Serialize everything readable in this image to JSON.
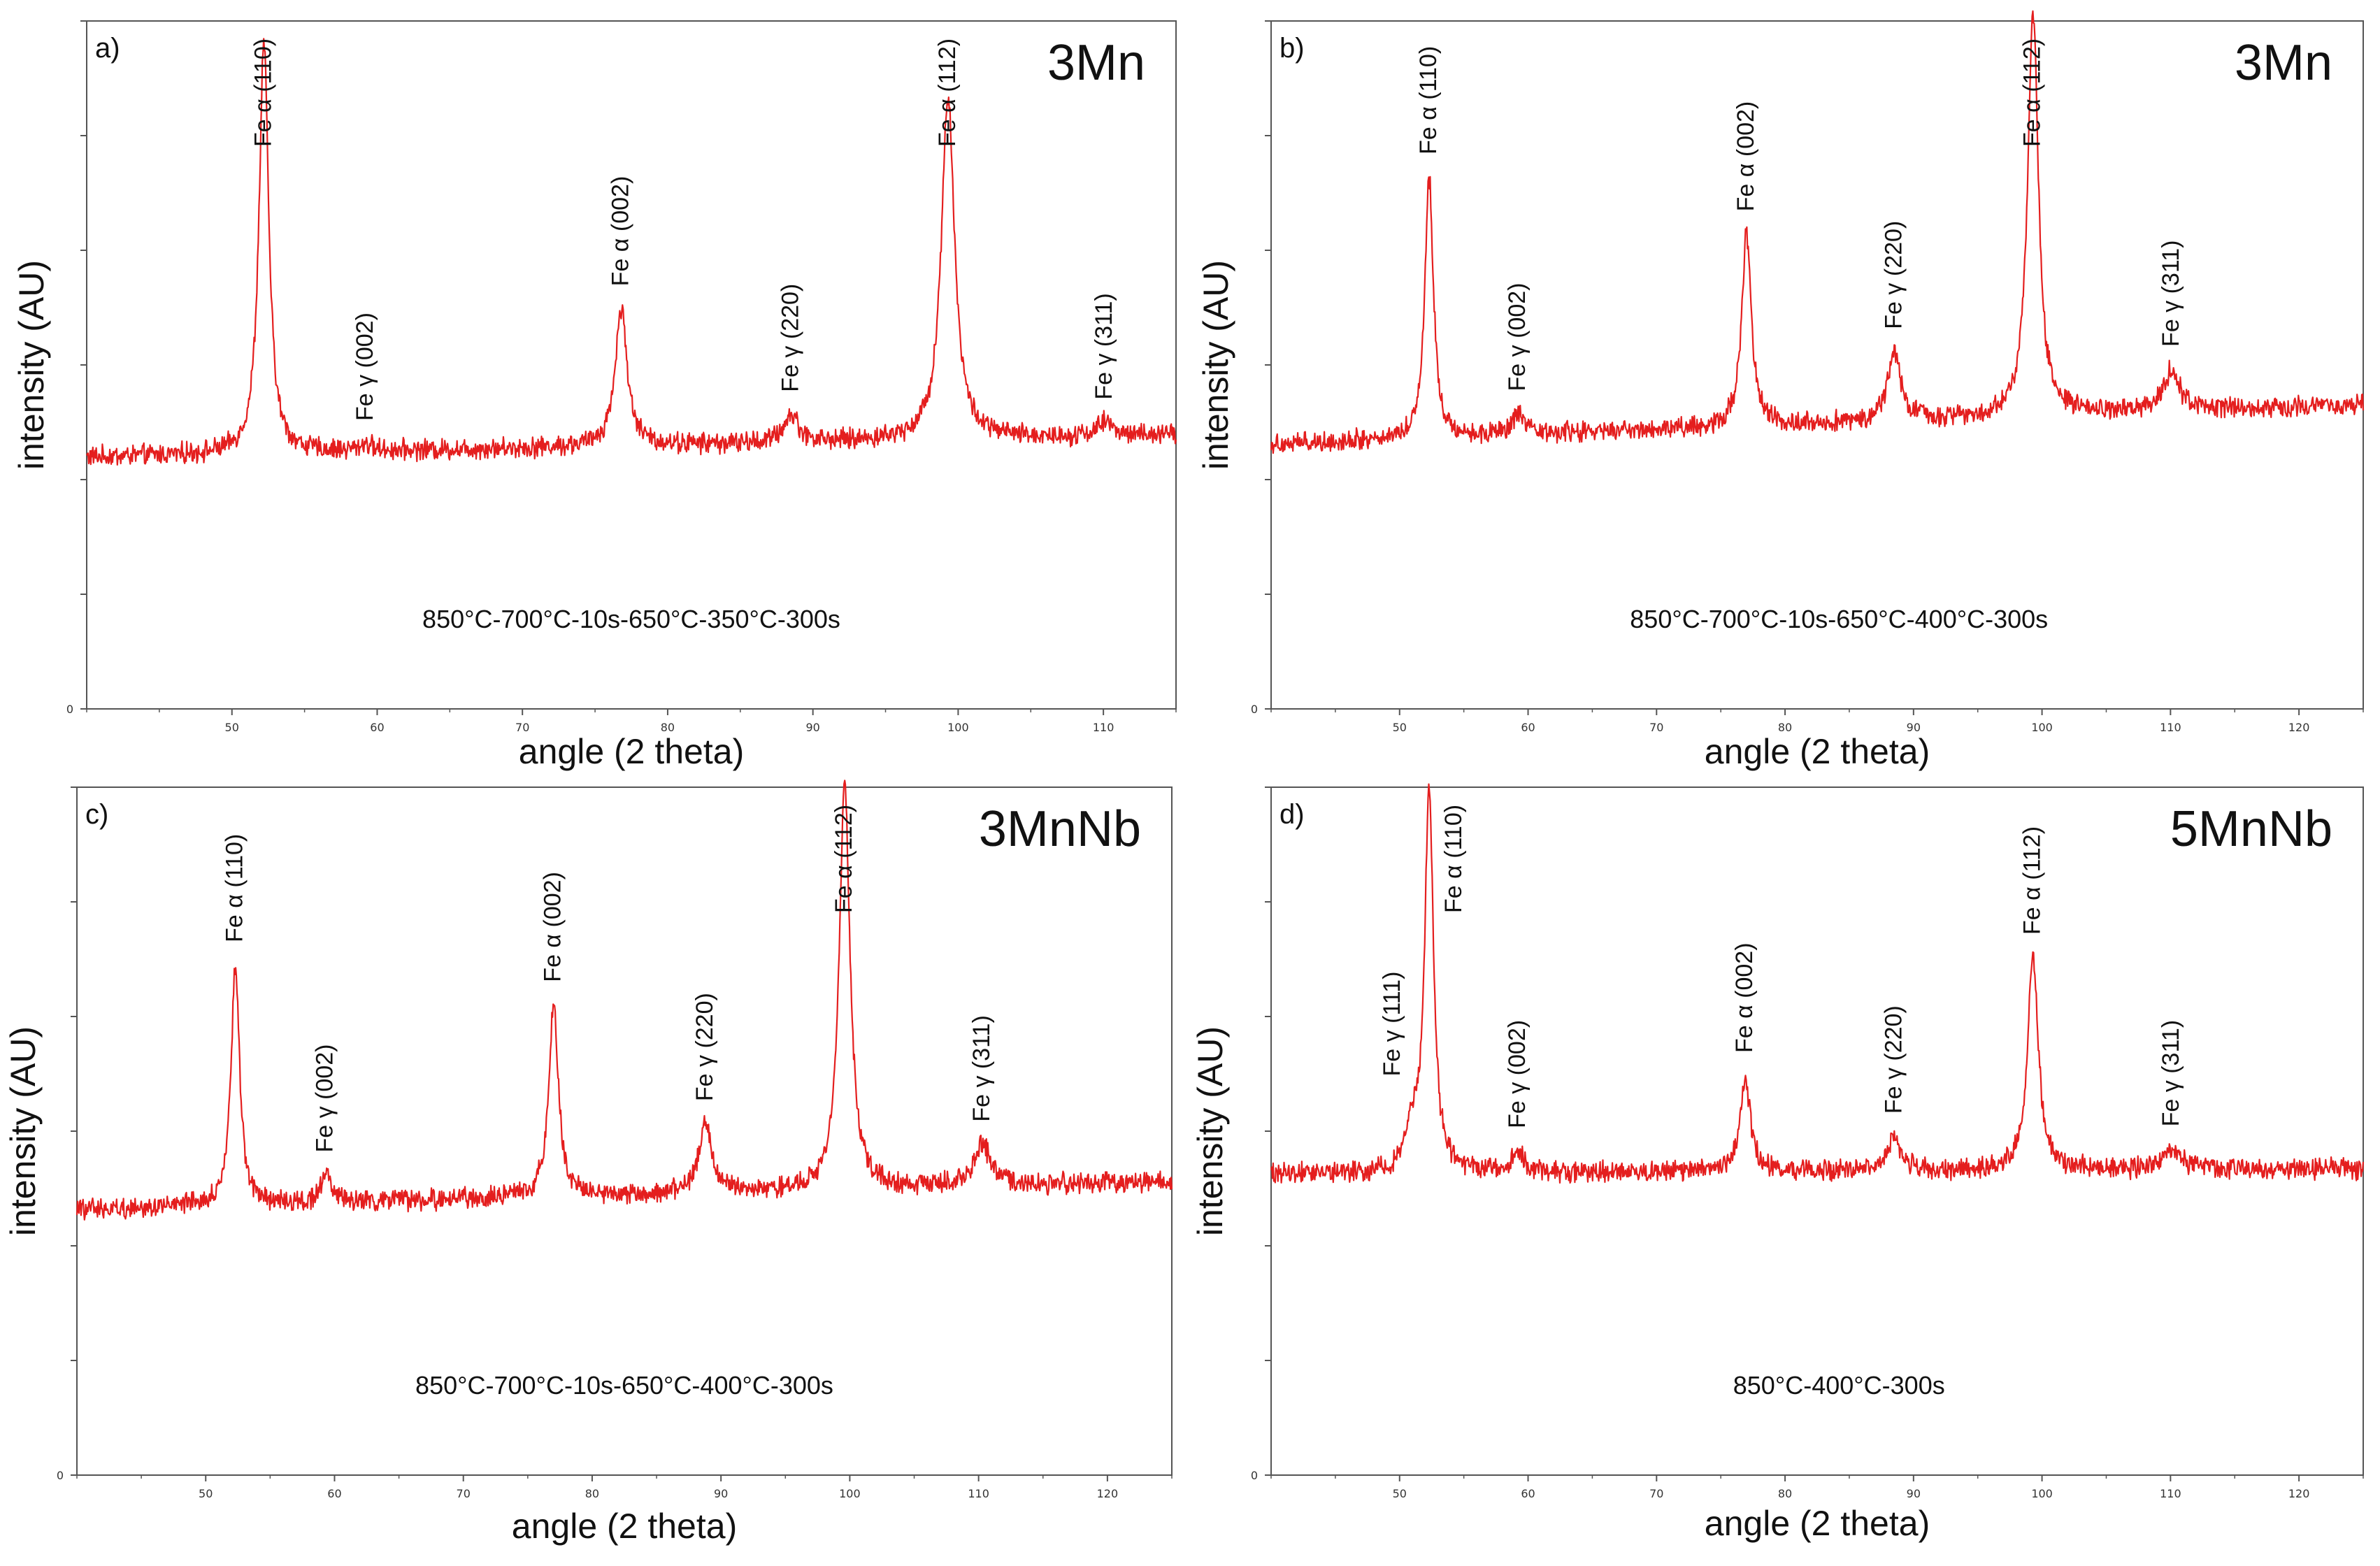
{
  "figure": {
    "description_free": true,
    "x_axis_title": "angle (2 theta)",
    "y_axis_title": "intensity (AU)"
  },
  "colors": {
    "trace": "#e41e1e",
    "trace_dark": "#7a1010",
    "frame": "#555555",
    "text": "#111111"
  },
  "chart_data": [
    {
      "type": "line",
      "panel": "a)",
      "sample": "3Mn",
      "condition": "850°C-700°C-10s-650°C-350°C-300s",
      "xlabel": "angle (2 theta)",
      "ylabel": "intensity (AU)",
      "xlim": [
        40,
        115
      ],
      "ylim": [
        0,
        1
      ],
      "x_ticks": [
        50,
        60,
        70,
        80,
        90,
        100,
        110
      ],
      "y_ticks": [
        0
      ],
      "baseline": [
        [
          40,
          0.366
        ],
        [
          115,
          0.398
        ]
      ],
      "noise": 0.012,
      "peaks": [
        {
          "x": 52.2,
          "height": 0.6,
          "width": 0.4,
          "label": "Fe α (110)"
        },
        {
          "x": 59.2,
          "height": 0.01,
          "width": 0.5,
          "label": "Fe γ (002)"
        },
        {
          "x": 76.8,
          "height": 0.2,
          "width": 0.5,
          "label": "Fe α (002)"
        },
        {
          "x": 88.5,
          "height": 0.04,
          "width": 0.6,
          "label": "Fe γ (220)"
        },
        {
          "x": 99.3,
          "height": 0.5,
          "width": 0.55,
          "label": "Fe α (112)"
        },
        {
          "x": 110.1,
          "height": 0.02,
          "width": 0.7,
          "label": "Fe γ (311)"
        }
      ]
    },
    {
      "type": "line",
      "panel": "b)",
      "sample": "3Mn",
      "condition": "850°C-700°C-10s-650°C-400°C-300s",
      "xlabel": "angle (2 theta)",
      "ylabel": "intensity (AU)",
      "xlim": [
        40,
        125
      ],
      "ylim": [
        0,
        1
      ],
      "x_ticks": [
        50,
        60,
        70,
        80,
        90,
        100,
        110,
        120
      ],
      "y_ticks": [
        0
      ],
      "baseline": [
        [
          40,
          0.385
        ],
        [
          125,
          0.443
        ]
      ],
      "noise": 0.012,
      "peaks": [
        {
          "x": 52.3,
          "height": 0.38,
          "width": 0.4,
          "label": "Fe α (110)"
        },
        {
          "x": 59.2,
          "height": 0.03,
          "width": 0.5,
          "label": "Fe γ (002)"
        },
        {
          "x": 77.0,
          "height": 0.28,
          "width": 0.45,
          "label": "Fe α (002)"
        },
        {
          "x": 88.5,
          "height": 0.1,
          "width": 0.6,
          "label": "Fe γ (220)"
        },
        {
          "x": 99.3,
          "height": 0.59,
          "width": 0.5,
          "label": "Fe α (112)"
        },
        {
          "x": 110.1,
          "height": 0.06,
          "width": 0.7,
          "label": "Fe γ (311)"
        }
      ]
    },
    {
      "type": "line",
      "panel": "c)",
      "sample": "3MnNb",
      "condition": "850°C-700°C-10s-650°C-400°C-300s",
      "xlabel": "angle (2 theta)",
      "ylabel": "intensity (AU)",
      "xlim": [
        40,
        125
      ],
      "ylim": [
        0,
        1
      ],
      "x_ticks": [
        50,
        60,
        70,
        80,
        90,
        100,
        110,
        120
      ],
      "y_ticks": [
        0
      ],
      "baseline": [
        [
          40,
          0.386
        ],
        [
          125,
          0.427
        ]
      ],
      "noise": 0.012,
      "peaks": [
        {
          "x": 52.3,
          "height": 0.35,
          "width": 0.4,
          "label": "Fe α (110)"
        },
        {
          "x": 59.3,
          "height": 0.04,
          "width": 0.5,
          "label": "Fe γ (002)"
        },
        {
          "x": 77.0,
          "height": 0.28,
          "width": 0.45,
          "label": "Fe α (002)"
        },
        {
          "x": 88.8,
          "height": 0.1,
          "width": 0.6,
          "label": "Fe γ (220)"
        },
        {
          "x": 99.6,
          "height": 0.59,
          "width": 0.5,
          "label": "Fe α (112)"
        },
        {
          "x": 110.3,
          "height": 0.06,
          "width": 0.8,
          "label": "Fe γ (311)"
        }
      ]
    },
    {
      "type": "line",
      "panel": "d)",
      "sample": "5MnNb",
      "condition": "850°C-400°C-300s",
      "xlabel": "angle (2 theta)",
      "ylabel": "intensity (AU)",
      "xlim": [
        40,
        125
      ],
      "ylim": [
        0,
        1
      ],
      "x_ticks": [
        50,
        60,
        70,
        80,
        90,
        100,
        110,
        120
      ],
      "y_ticks": [
        0
      ],
      "baseline": [
        [
          40,
          0.438
        ],
        [
          125,
          0.445
        ]
      ],
      "noise": 0.012,
      "peaks": [
        {
          "x": 51.0,
          "height": 0.06,
          "width": 0.6,
          "label": "Fe γ (111)"
        },
        {
          "x": 52.3,
          "height": 0.56,
          "width": 0.4,
          "label": "Fe α (110)"
        },
        {
          "x": 59.2,
          "height": 0.03,
          "width": 0.5,
          "label": "Fe γ (002)"
        },
        {
          "x": 76.9,
          "height": 0.14,
          "width": 0.45,
          "label": "Fe α (002)"
        },
        {
          "x": 88.5,
          "height": 0.05,
          "width": 0.6,
          "label": "Fe γ (220)"
        },
        {
          "x": 99.3,
          "height": 0.31,
          "width": 0.5,
          "label": "Fe α (112)"
        },
        {
          "x": 110.1,
          "height": 0.03,
          "width": 0.8,
          "label": "Fe γ (311)"
        }
      ]
    }
  ]
}
